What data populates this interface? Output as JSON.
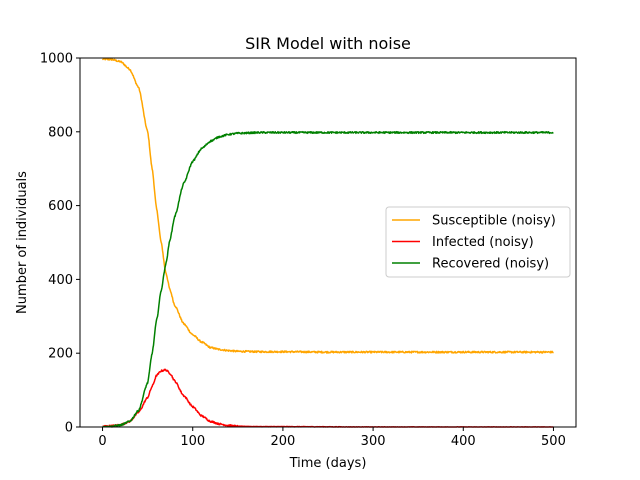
{
  "chart_data": {
    "type": "line",
    "title": "SIR Model with noise",
    "xlabel": "Time (days)",
    "ylabel": "Number of individuals",
    "xlim": [
      -25,
      525
    ],
    "ylim": [
      0,
      1000
    ],
    "xticks": [
      0,
      100,
      200,
      300,
      400,
      500
    ],
    "yticks": [
      0,
      200,
      400,
      600,
      800,
      1000
    ],
    "grid": false,
    "legend_position": "center-right",
    "series": [
      {
        "name": "Susceptible (noisy)",
        "color": "#ffa500",
        "points": [
          [
            0,
            997
          ],
          [
            10,
            996
          ],
          [
            20,
            990
          ],
          [
            30,
            970
          ],
          [
            40,
            920
          ],
          [
            50,
            800
          ],
          [
            55,
            700
          ],
          [
            60,
            590
          ],
          [
            65,
            500
          ],
          [
            70,
            420
          ],
          [
            75,
            370
          ],
          [
            80,
            330
          ],
          [
            90,
            280
          ],
          [
            100,
            250
          ],
          [
            110,
            230
          ],
          [
            120,
            215
          ],
          [
            130,
            210
          ],
          [
            140,
            207
          ],
          [
            150,
            205
          ],
          [
            175,
            204
          ],
          [
            200,
            204
          ],
          [
            250,
            203
          ],
          [
            300,
            203
          ],
          [
            350,
            203
          ],
          [
            400,
            203
          ],
          [
            450,
            203
          ],
          [
            500,
            203
          ]
        ]
      },
      {
        "name": "Infected (noisy)",
        "color": "#ff0000",
        "points": [
          [
            0,
            2
          ],
          [
            10,
            3
          ],
          [
            20,
            6
          ],
          [
            30,
            15
          ],
          [
            40,
            40
          ],
          [
            50,
            80
          ],
          [
            55,
            110
          ],
          [
            60,
            140
          ],
          [
            65,
            152
          ],
          [
            70,
            155
          ],
          [
            75,
            145
          ],
          [
            80,
            125
          ],
          [
            90,
            85
          ],
          [
            100,
            55
          ],
          [
            110,
            30
          ],
          [
            120,
            15
          ],
          [
            130,
            8
          ],
          [
            140,
            4
          ],
          [
            150,
            2
          ],
          [
            175,
            1
          ],
          [
            200,
            1
          ],
          [
            300,
            0
          ],
          [
            400,
            0
          ],
          [
            500,
            0
          ]
        ]
      },
      {
        "name": "Recovered (noisy)",
        "color": "#008000",
        "points": [
          [
            0,
            1
          ],
          [
            10,
            2
          ],
          [
            20,
            5
          ],
          [
            30,
            15
          ],
          [
            40,
            45
          ],
          [
            50,
            120
          ],
          [
            55,
            200
          ],
          [
            60,
            290
          ],
          [
            65,
            370
          ],
          [
            70,
            440
          ],
          [
            75,
            510
          ],
          [
            80,
            570
          ],
          [
            90,
            660
          ],
          [
            100,
            720
          ],
          [
            110,
            755
          ],
          [
            120,
            775
          ],
          [
            130,
            787
          ],
          [
            140,
            793
          ],
          [
            150,
            796
          ],
          [
            175,
            798
          ],
          [
            200,
            798
          ],
          [
            250,
            798
          ],
          [
            300,
            798
          ],
          [
            350,
            798
          ],
          [
            400,
            798
          ],
          [
            450,
            798
          ],
          [
            500,
            798
          ]
        ]
      }
    ]
  }
}
